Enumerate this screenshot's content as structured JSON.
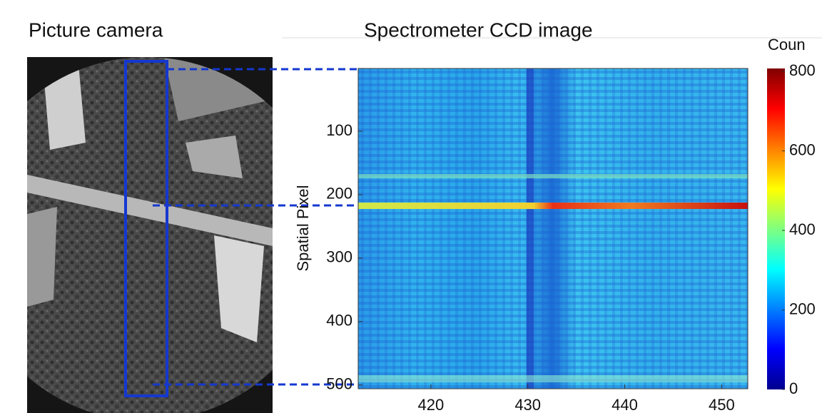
{
  "figure": {
    "left_title": "Picture camera",
    "right_title": "Spectrometer CCD image"
  },
  "chart_data": {
    "type": "heatmap",
    "ylabel": "Spatial Pixel",
    "xlim": [
      412.5,
      452.7
    ],
    "xticks": [
      420,
      430,
      440,
      450
    ],
    "ylim": [
      1,
      506
    ],
    "yticks": [
      100,
      200,
      300,
      400,
      500
    ],
    "colorbar": {
      "label": "Coun",
      "lim": [
        0,
        800
      ],
      "ticks": [
        0,
        200,
        400,
        600,
        800
      ]
    }
  }
}
